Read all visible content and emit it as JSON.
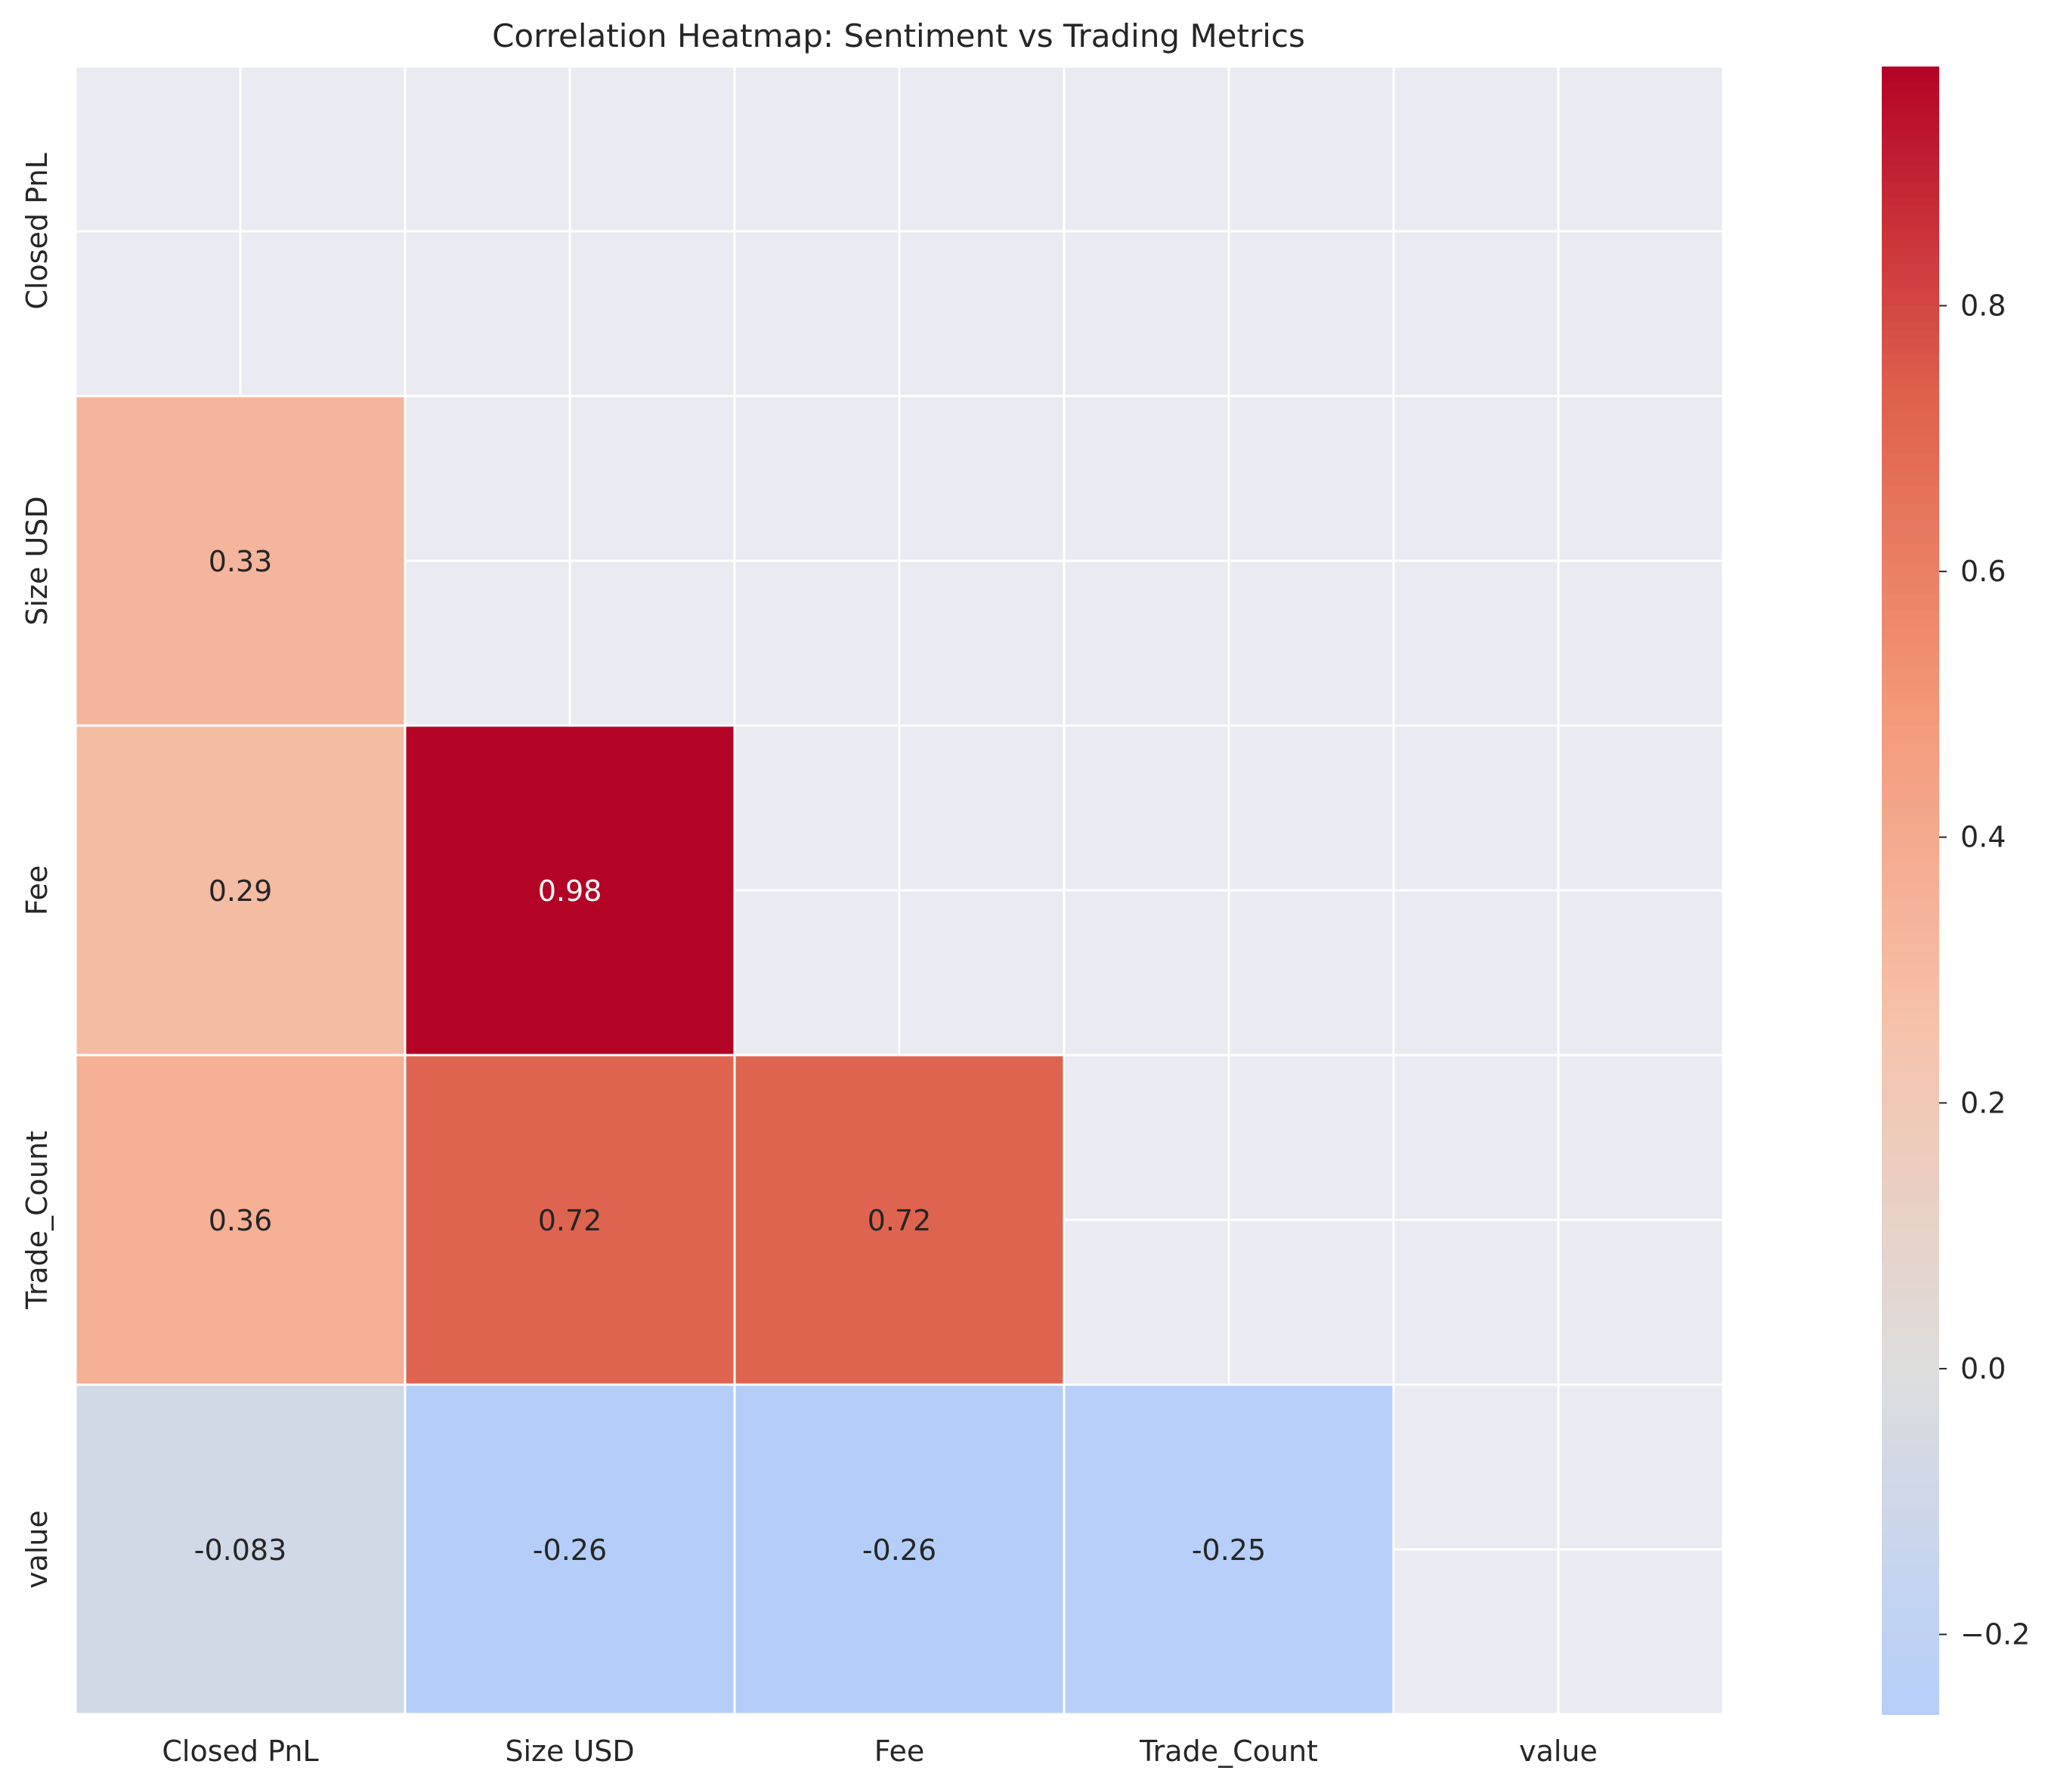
{
  "chart_data": {
    "type": "heatmap",
    "title": "Correlation Heatmap: Sentiment vs Trading Metrics",
    "xlabel": "",
    "ylabel": "",
    "x_labels": [
      "Closed PnL",
      "Size USD",
      "Fee",
      "Trade_Count",
      "value"
    ],
    "y_labels": [
      "Closed PnL",
      "Size USD",
      "Fee",
      "Trade_Count",
      "value"
    ],
    "mask": "upper-triangle-including-diagonal",
    "matrix": [
      [
        null,
        null,
        null,
        null,
        null
      ],
      [
        0.33,
        null,
        null,
        null,
        null
      ],
      [
        0.29,
        0.98,
        null,
        null,
        null
      ],
      [
        0.36,
        0.72,
        0.72,
        null,
        null
      ],
      [
        -0.083,
        -0.26,
        -0.26,
        -0.25,
        null
      ]
    ],
    "colormap": "coolwarm",
    "center": 0,
    "colorbar": {
      "range": [
        -0.26,
        0.98
      ],
      "ticks": [
        -0.2,
        0.0,
        0.2,
        0.4,
        0.6,
        0.8
      ],
      "tick_labels": [
        "−0.2",
        "0.0",
        "0.2",
        "0.4",
        "0.6",
        "0.8"
      ]
    },
    "grid": true,
    "colors": {
      "background": "#eaeaf2",
      "grid": "#ffffff",
      "cell_border": "#ffffff",
      "text": "#262626"
    }
  }
}
